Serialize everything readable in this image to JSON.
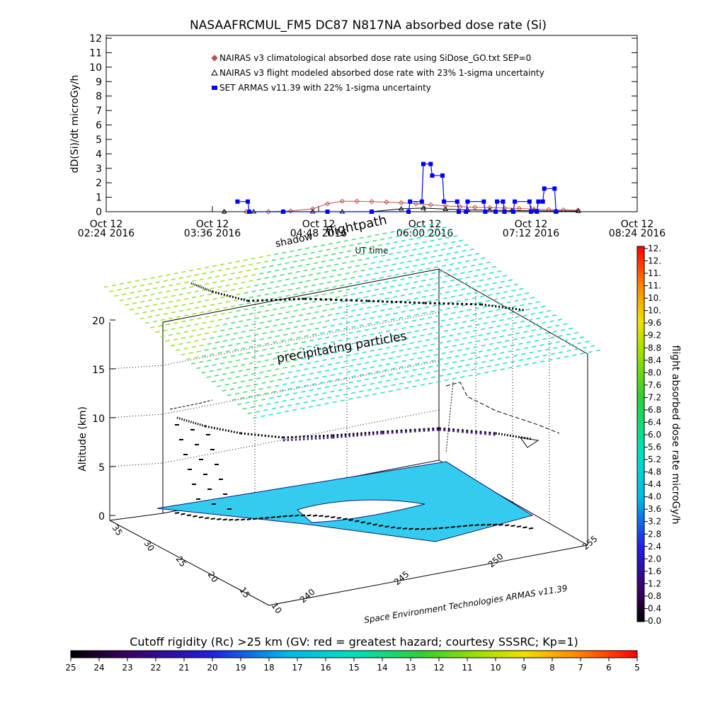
{
  "title": "NASAAFRCMUL_FM5 DC87 N817NA absorbed dose rate (Si)",
  "chart_data": [
    {
      "type": "line",
      "panel": "top-timeseries",
      "ylabel": "dD(Si)/dt microGy/h",
      "xlabel": "UT time",
      "ylim": [
        0,
        12
      ],
      "yticks": [
        "0",
        "1",
        "2",
        "3",
        "4",
        "5",
        "6",
        "7",
        "8",
        "9",
        "10",
        "11",
        "12"
      ],
      "xticks": [
        {
          "t": 0,
          "line1": "Oct 12",
          "line2": "02:24 2016"
        },
        {
          "t": 72,
          "line1": "Oct 12",
          "line2": "03:36 2016"
        },
        {
          "t": 144,
          "line1": "Oct 12",
          "line2": "04:48 2016"
        },
        {
          "t": 216,
          "line1": "Oct 12",
          "line2": "06:00 2016"
        },
        {
          "t": 288,
          "line1": "Oct 12",
          "line2": "07:12 2016"
        },
        {
          "t": 360,
          "line1": "Oct 12",
          "line2": "08:24 2016"
        }
      ],
      "xlim": [
        0,
        360
      ],
      "legend_position": "top",
      "series": [
        {
          "name": "NAIRAS v3 climatological absorbed dose rate using SiDose_GO.txt SEP=0",
          "color": "#c0504d",
          "marker": "diamond",
          "x": [
            80,
            95,
            110,
            125,
            140,
            150,
            160,
            170,
            180,
            190,
            200,
            210,
            220,
            230,
            240,
            250,
            260,
            270,
            280,
            290,
            300,
            310,
            320
          ],
          "y": [
            0.0,
            0.0,
            0.0,
            0.05,
            0.2,
            0.55,
            0.72,
            0.72,
            0.7,
            0.66,
            0.62,
            0.55,
            0.48,
            0.4,
            0.35,
            0.3,
            0.28,
            0.25,
            0.22,
            0.18,
            0.15,
            0.12,
            0.1
          ]
        },
        {
          "name": "NAIRAS v3 flight modeled absorbed dose rate with 23% 1-sigma uncertainty",
          "color": "#000000",
          "marker": "triangle",
          "x": [
            80,
            100,
            120,
            140,
            160,
            180,
            200,
            215,
            230,
            245,
            260,
            275,
            290,
            305,
            320
          ],
          "y": [
            0.0,
            0.0,
            0.0,
            0.0,
            0.0,
            0.0,
            0.2,
            0.25,
            0.18,
            0.12,
            0.1,
            0.08,
            0.06,
            0.05,
            0.04
          ]
        },
        {
          "name": "SET ARMAS v11.39 with 22% 1-sigma uncertainty",
          "color": "#0000ff",
          "marker": "square",
          "x": [
            89,
            96,
            97,
            120,
            150,
            180,
            205,
            206,
            214,
            215,
            220,
            221,
            228,
            229,
            238,
            239,
            244,
            245,
            256,
            257,
            264,
            265,
            269,
            270,
            276,
            277,
            287,
            288,
            292,
            293,
            296,
            297,
            304,
            305
          ],
          "y": [
            0.7,
            0.7,
            0.0,
            0.0,
            0.0,
            0.0,
            0.0,
            0.7,
            0.7,
            3.3,
            3.3,
            2.5,
            2.5,
            0.7,
            0.7,
            0.0,
            0.0,
            0.7,
            0.7,
            0.0,
            0.0,
            0.7,
            0.7,
            0.0,
            0.0,
            0.7,
            0.7,
            0.0,
            0.0,
            0.7,
            0.7,
            1.6,
            1.6,
            0.0
          ]
        }
      ]
    },
    {
      "type": "scatter",
      "panel": "3d-flight",
      "zlabel": "Altitude (km)",
      "zticks": [
        "0",
        "5",
        "10",
        "15",
        "20"
      ],
      "zlim": [
        0,
        20
      ],
      "lat_ticks": [
        "10",
        "15",
        "20",
        "25",
        "30",
        "35"
      ],
      "lon_ticks": [
        "240",
        "245",
        "250",
        "255"
      ],
      "annotations": [
        "shadow",
        "flightpath",
        "precipitating particles"
      ],
      "credit": "Space Environment Technologies ARMAS v11.39",
      "plane_altitude_km": 20,
      "flight_altitude_km": 9
    },
    {
      "type": "heatmap",
      "panel": "colorbar-right",
      "label": "flight absorbed dose rate microGy/h",
      "ticks": [
        "0.0",
        "0.4",
        "0.8",
        "1.2",
        "1.6",
        "2.0",
        "2.4",
        "2.8",
        "3.2",
        "3.6",
        "4.0",
        "4.4",
        "4.8",
        "5.2",
        "5.6",
        "6.0",
        "6.4",
        "6.8",
        "7.2",
        "7.6",
        "8.0",
        "8.4",
        "8.8",
        "9.2",
        "9.6",
        "10.",
        "10.",
        "11.",
        "11.",
        "12.",
        "12."
      ]
    },
    {
      "type": "heatmap",
      "panel": "colorbar-bottom",
      "label": "Cutoff rigidity (Rc) >25 km (GV: red = greatest hazard; courtesy SSSRC; Kp=1)",
      "ticks": [
        "25",
        "24",
        "23",
        "22",
        "21",
        "20",
        "19",
        "18",
        "17",
        "16",
        "15",
        "14",
        "13",
        "12",
        "11",
        "10",
        "9",
        "8",
        "7",
        "6",
        "5"
      ]
    }
  ]
}
